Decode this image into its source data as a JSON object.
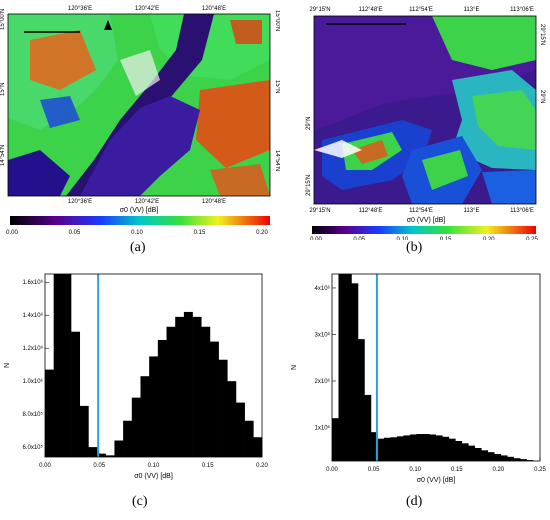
{
  "captions": {
    "a": "(a)",
    "b": "(b)",
    "c": "(c)",
    "d": "(d)"
  },
  "map_a": {
    "top_coords": [
      "120°36'E",
      "120°42'E",
      "120°48'E"
    ],
    "bottom_coords": [
      "120°36'E",
      "120°42'E",
      "120°48'E"
    ],
    "left_coords": [
      "15°00'N",
      "15°N",
      "14°54'N"
    ],
    "right_coords": [
      "15°00'N",
      "15°N",
      "14°54'N"
    ],
    "colorbar_label": "σ0 (VV) [dB]",
    "colorbar_ticks": [
      "0.00",
      "0.05",
      "0.10",
      "0.15",
      "0.20"
    ],
    "colors": {
      "water": "#2a1070",
      "veg": "#3cd24a",
      "urban": "#e84a10"
    }
  },
  "map_b": {
    "top_coords": [
      "29°15'N",
      "112°48'E",
      "112°54'E",
      "113°E",
      "113°06'E"
    ],
    "bottom_coords": [
      "29°15'N",
      "112°48'E",
      "112°54'E",
      "113°E",
      "113°06'E"
    ],
    "left_coords": [
      "29°N",
      "29°15'N"
    ],
    "right_coords": [
      "29°N",
      "29°15'N"
    ],
    "colorbar_label": "σ0 (VV) [dB]",
    "colorbar_ticks": [
      "0.00",
      "0.05",
      "0.10",
      "0.15",
      "0.20",
      "0.25"
    ],
    "colors": {
      "water": "#3a1a8c",
      "veg": "#3cd24a",
      "urban": "#e84a10"
    }
  },
  "chart_data": [
    {
      "type": "bar",
      "panel": "c",
      "xlabel": "σ0 (VV) [dB]",
      "ylabel": "N",
      "xlim": [
        0.0,
        0.2
      ],
      "ylim": [
        540000,
        1650000
      ],
      "x_ticks": [
        "0.00",
        "0.05",
        "0.10",
        "0.15",
        "0.20"
      ],
      "y_ticks": [
        "6.0x10⁵",
        "8.0x10⁵",
        "1.0x10⁶",
        "1.2x10⁶",
        "1.4x10⁶",
        "1.6x10⁶"
      ],
      "threshold": 0.049,
      "bin_width": 0.008,
      "bins": [
        [
          0.0,
          1070000
        ],
        [
          0.008,
          1650000
        ],
        [
          0.016,
          1650000
        ],
        [
          0.024,
          1300000
        ],
        [
          0.032,
          850000
        ],
        [
          0.04,
          600000
        ],
        [
          0.048,
          560000
        ],
        [
          0.056,
          550000
        ],
        [
          0.064,
          640000
        ],
        [
          0.072,
          760000
        ],
        [
          0.08,
          900000
        ],
        [
          0.088,
          1030000
        ],
        [
          0.096,
          1150000
        ],
        [
          0.104,
          1250000
        ],
        [
          0.112,
          1330000
        ],
        [
          0.12,
          1390000
        ],
        [
          0.128,
          1420000
        ],
        [
          0.136,
          1390000
        ],
        [
          0.144,
          1330000
        ],
        [
          0.152,
          1240000
        ],
        [
          0.16,
          1130000
        ],
        [
          0.168,
          1000000
        ],
        [
          0.176,
          870000
        ],
        [
          0.184,
          760000
        ],
        [
          0.192,
          660000
        ]
      ]
    },
    {
      "type": "bar",
      "panel": "d",
      "xlabel": "σ0 (VV) [dB]",
      "ylabel": "N",
      "xlim": [
        0.0,
        0.25
      ],
      "ylim": [
        280000,
        4300000
      ],
      "x_ticks": [
        "0.00",
        "0.05",
        "0.10",
        "0.15",
        "0.20",
        "0.25"
      ],
      "y_ticks": [
        "1x10⁶",
        "2x10⁶",
        "3x10⁶",
        "4x10⁶"
      ],
      "threshold": 0.054,
      "bin_width": 0.0078,
      "bins": [
        [
          0.0,
          1200000
        ],
        [
          0.0078,
          4300000
        ],
        [
          0.0156,
          4300000
        ],
        [
          0.0234,
          4100000
        ],
        [
          0.0312,
          2900000
        ],
        [
          0.039,
          1700000
        ],
        [
          0.0468,
          900000
        ],
        [
          0.0546,
          760000
        ],
        [
          0.0624,
          780000
        ],
        [
          0.0702,
          790000
        ],
        [
          0.078,
          810000
        ],
        [
          0.0858,
          830000
        ],
        [
          0.0936,
          850000
        ],
        [
          0.1014,
          860000
        ],
        [
          0.1092,
          860000
        ],
        [
          0.117,
          850000
        ],
        [
          0.1248,
          830000
        ],
        [
          0.1326,
          800000
        ],
        [
          0.1404,
          760000
        ],
        [
          0.1482,
          710000
        ],
        [
          0.156,
          660000
        ],
        [
          0.1638,
          610000
        ],
        [
          0.1716,
          560000
        ],
        [
          0.1794,
          510000
        ],
        [
          0.1872,
          470000
        ],
        [
          0.195,
          430000
        ],
        [
          0.2028,
          400000
        ],
        [
          0.2106,
          370000
        ],
        [
          0.2184,
          340000
        ],
        [
          0.2262,
          320000
        ],
        [
          0.234,
          300000
        ]
      ]
    }
  ]
}
